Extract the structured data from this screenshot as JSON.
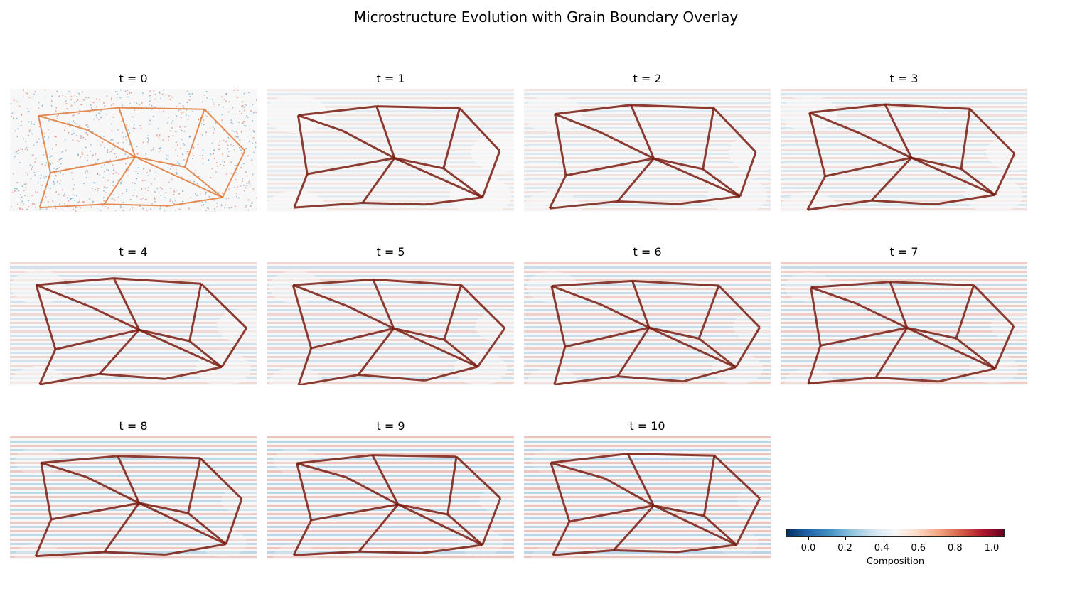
{
  "figure_title": "Microstructure Evolution with Grain Boundary Overlay",
  "panels": [
    {
      "title": "t = 0"
    },
    {
      "title": "t = 1"
    },
    {
      "title": "t = 2"
    },
    {
      "title": "t = 3"
    },
    {
      "title": "t = 4"
    },
    {
      "title": "t = 5"
    },
    {
      "title": "t = 6"
    },
    {
      "title": "t = 7"
    },
    {
      "title": "t = 8"
    },
    {
      "title": "t = 9"
    },
    {
      "title": "t = 10"
    }
  ],
  "colorbar": {
    "label": "Composition",
    "colormap": "RdBu_r",
    "range": [
      -0.12,
      1.07
    ],
    "ticks": [
      "0.0",
      "0.2",
      "0.4",
      "0.6",
      "0.8",
      "1.0"
    ],
    "tick_values": [
      0.0,
      0.2,
      0.4,
      0.6,
      0.8,
      1.0
    ],
    "colors": [
      "#053061",
      "#2166ac",
      "#4393c3",
      "#92c5de",
      "#d1e5f0",
      "#f7f7f7",
      "#fddbc7",
      "#f4a582",
      "#d6604d",
      "#b2182b",
      "#67001f"
    ]
  },
  "chart_data": {
    "type": "heatmap",
    "title": "Microstructure Evolution with Grain Boundary Overlay",
    "time_steps": [
      0,
      1,
      2,
      3,
      4,
      5,
      6,
      7,
      8,
      9,
      10
    ],
    "colorbar_label": "Composition",
    "value_range": [
      -0.12,
      1.07
    ],
    "colorbar_ticks": [
      0.0,
      0.2,
      0.4,
      0.6,
      0.8,
      1.0
    ],
    "grid": false
  }
}
